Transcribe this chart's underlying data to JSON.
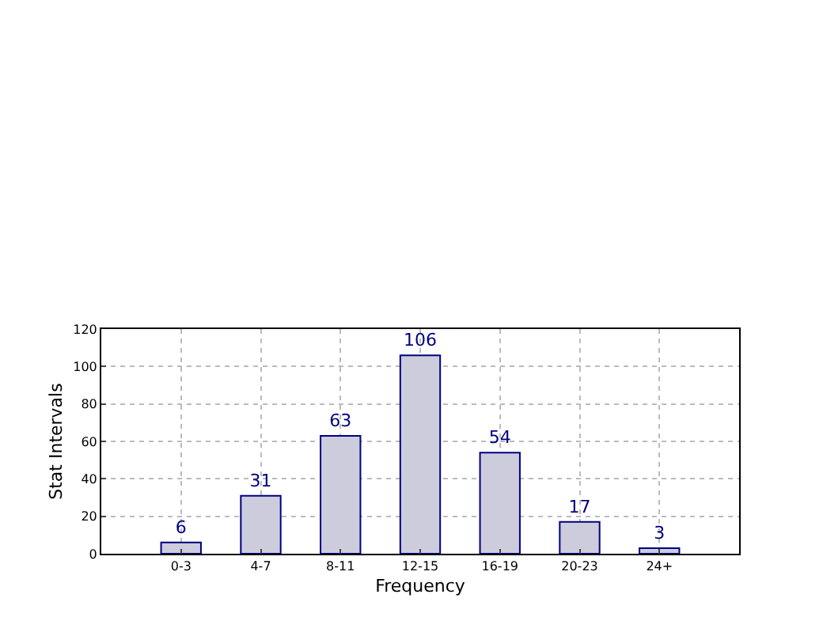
{
  "chart_data": {
    "type": "bar",
    "xlabel": "Frequency",
    "ylabel": "Stat Intervals",
    "categories": [
      "0-3",
      "4-7",
      "8-11",
      "12-15",
      "16-19",
      "20-23",
      "24+"
    ],
    "values": [
      6,
      31,
      63,
      106,
      54,
      17,
      3
    ],
    "color": "#ccccdd",
    "ylim": [
      0,
      120
    ],
    "yticks": [
      0,
      20,
      40,
      60,
      80,
      100,
      120
    ],
    "grid": true,
    "data_labels": true
  }
}
